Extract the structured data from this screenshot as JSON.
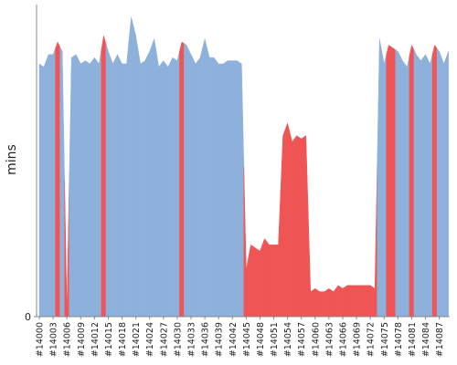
{
  "chart_data": {
    "type": "area",
    "y_label": "mins",
    "categories": [
      "#14000",
      null,
      null,
      "#14003",
      null,
      null,
      "#14006",
      null,
      null,
      "#14009",
      null,
      null,
      "#14012",
      null,
      null,
      "#14015",
      null,
      null,
      "#14018",
      null,
      null,
      "#14021",
      null,
      null,
      "#14024",
      null,
      null,
      "#14027",
      null,
      null,
      "#14030",
      null,
      null,
      "#14033",
      null,
      null,
      "#14036",
      null,
      null,
      "#14039",
      null,
      null,
      "#14042",
      null,
      null,
      "#14045",
      null,
      null,
      "#14048",
      null,
      null,
      "#14051",
      null,
      null,
      "#14054",
      null,
      null,
      "#14057",
      null,
      null,
      "#14060",
      null,
      null,
      "#14063",
      null,
      null,
      "#14066",
      null,
      null,
      "#14069",
      null,
      null,
      "#14072",
      null,
      null,
      "#14075",
      null,
      null,
      "#14078",
      null,
      null,
      "#14081",
      null,
      null,
      "#14084",
      null,
      null,
      "#14087",
      null,
      null
    ],
    "values": [
      81,
      80,
      84,
      84,
      88,
      85,
      2,
      83,
      84,
      81,
      82,
      81,
      83,
      81,
      90,
      85,
      81,
      84,
      81,
      81,
      96,
      90,
      81,
      82,
      85,
      89,
      80,
      82,
      80,
      83,
      82,
      88,
      87,
      84,
      81,
      83,
      89,
      83,
      83,
      81,
      81,
      82,
      82,
      82,
      81,
      15,
      23,
      22,
      21,
      25,
      23,
      23,
      23,
      58,
      62,
      56,
      58,
      57,
      58,
      8,
      9,
      8,
      8,
      9,
      8,
      10,
      9,
      10,
      10,
      10,
      10,
      10,
      10,
      9,
      89,
      81,
      87,
      86,
      85,
      82,
      80,
      87,
      84,
      82,
      84,
      81,
      87,
      85,
      81,
      85
    ],
    "colors": [
      "#8eb1dc",
      "#8eb1dc",
      "#8eb1dc",
      "#8eb1dc",
      "#f05555",
      "#8eb1dc",
      "#f05555",
      "#8eb1dc",
      "#8eb1dc",
      "#8eb1dc",
      "#8eb1dc",
      "#8eb1dc",
      "#8eb1dc",
      "#8eb1dc",
      "#f05555",
      "#8eb1dc",
      "#8eb1dc",
      "#8eb1dc",
      "#8eb1dc",
      "#8eb1dc",
      "#8eb1dc",
      "#8eb1dc",
      "#8eb1dc",
      "#8eb1dc",
      "#8eb1dc",
      "#8eb1dc",
      "#8eb1dc",
      "#8eb1dc",
      "#8eb1dc",
      "#8eb1dc",
      "#8eb1dc",
      "#f05555",
      "#8eb1dc",
      "#8eb1dc",
      "#8eb1dc",
      "#8eb1dc",
      "#8eb1dc",
      "#8eb1dc",
      "#8eb1dc",
      "#8eb1dc",
      "#8eb1dc",
      "#8eb1dc",
      "#8eb1dc",
      "#8eb1dc",
      "#8eb1dc",
      "#f05555",
      "#f05555",
      "#f05555",
      "#f05555",
      "#f05555",
      "#f05555",
      "#f05555",
      "#f05555",
      "#f05555",
      "#f05555",
      "#f05555",
      "#f05555",
      "#f05555",
      "#f05555",
      "#f05555",
      "#f05555",
      "#f05555",
      "#f05555",
      "#f05555",
      "#f05555",
      "#f05555",
      "#f05555",
      "#f05555",
      "#f05555",
      "#f05555",
      "#f05555",
      "#f05555",
      "#f05555",
      "#f05555",
      "#8eb1dc",
      "#8eb1dc",
      "#f05555",
      "#f05555",
      "#8eb1dc",
      "#8eb1dc",
      "#8eb1dc",
      "#f05555",
      "#8eb1dc",
      "#8eb1dc",
      "#8eb1dc",
      "#8eb1dc",
      "#f05555",
      "#8eb1dc",
      "#8eb1dc",
      "#8eb1dc"
    ],
    "ylim": [
      0,
      100
    ],
    "yticks": [
      0
    ]
  }
}
